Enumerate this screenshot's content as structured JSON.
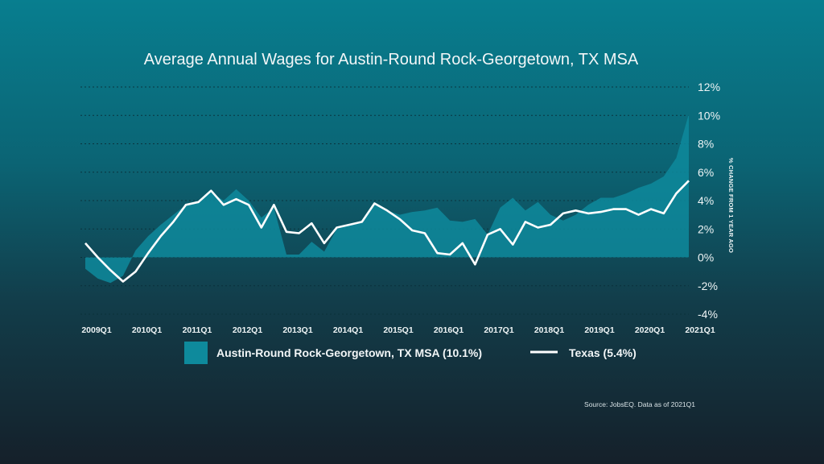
{
  "chart_data": {
    "type": "line",
    "title": "Average Annual Wages for Austin-Round Rock-Georgetown, TX MSA",
    "ylabel": "% CHANGE FROM 1 YEAR AGO",
    "xlabel": "",
    "ylim": [
      -4,
      12
    ],
    "yticks": [
      "12%",
      "10%",
      "8%",
      "6%",
      "4%",
      "2%",
      "0%",
      "-2%",
      "-4%"
    ],
    "ytick_values": [
      12,
      10,
      8,
      6,
      4,
      2,
      0,
      -2,
      -4
    ],
    "xticks": [
      "2009Q1",
      "2010Q1",
      "2011Q1",
      "2012Q1",
      "2013Q1",
      "2014Q1",
      "2015Q1",
      "2016Q1",
      "2017Q1",
      "2018Q1",
      "2019Q1",
      "2020Q1",
      "2021Q1"
    ],
    "grid": true,
    "legend_position": "bottom",
    "x": [
      "2009Q1",
      "2009Q2",
      "2009Q3",
      "2009Q4",
      "2010Q1",
      "2010Q2",
      "2010Q3",
      "2010Q4",
      "2011Q1",
      "2011Q2",
      "2011Q3",
      "2011Q4",
      "2012Q1",
      "2012Q2",
      "2012Q3",
      "2012Q4",
      "2013Q1",
      "2013Q2",
      "2013Q3",
      "2013Q4",
      "2014Q1",
      "2014Q2",
      "2014Q3",
      "2014Q4",
      "2015Q1",
      "2015Q2",
      "2015Q3",
      "2015Q4",
      "2016Q1",
      "2016Q2",
      "2016Q3",
      "2016Q4",
      "2017Q1",
      "2017Q2",
      "2017Q3",
      "2017Q4",
      "2018Q1",
      "2018Q2",
      "2018Q3",
      "2018Q4",
      "2019Q1",
      "2019Q2",
      "2019Q3",
      "2019Q4",
      "2020Q1",
      "2020Q2",
      "2020Q3",
      "2020Q4",
      "2021Q1"
    ],
    "series": [
      {
        "name": "Austin-Round Rock-Georgetown, TX MSA (10.1%)",
        "style": "area",
        "color": "#0e8a9c",
        "values": [
          -0.8,
          -1.5,
          -1.8,
          -1.3,
          0.5,
          1.5,
          2.3,
          3.0,
          3.7,
          4.0,
          4.6,
          4.0,
          4.8,
          4.0,
          2.8,
          3.5,
          0.2,
          0.2,
          1.1,
          0.4,
          2.0,
          2.3,
          2.6,
          3.7,
          3.3,
          3.0,
          3.2,
          3.3,
          3.5,
          2.6,
          2.5,
          2.7,
          1.6,
          3.5,
          4.2,
          3.3,
          3.9,
          3.0,
          2.6,
          3.0,
          3.7,
          4.2,
          4.2,
          4.5,
          4.9,
          5.2,
          5.7,
          7.0,
          10.1
        ]
      },
      {
        "name": "Texas (5.4%)",
        "style": "line",
        "color": "#ffffff",
        "values": [
          1.0,
          0.0,
          -0.9,
          -1.7,
          -1.0,
          0.3,
          1.5,
          2.5,
          3.7,
          3.9,
          4.7,
          3.7,
          4.1,
          3.7,
          2.1,
          3.7,
          1.8,
          1.7,
          2.4,
          1.0,
          2.1,
          2.3,
          2.5,
          3.8,
          3.3,
          2.7,
          1.9,
          1.7,
          0.3,
          0.2,
          1.0,
          -0.5,
          1.6,
          2.0,
          0.9,
          2.5,
          2.1,
          2.3,
          3.1,
          3.3,
          3.1,
          3.2,
          3.4,
          3.4,
          3.0,
          3.4,
          3.1,
          4.5,
          5.4
        ]
      }
    ]
  },
  "source_note": "Source: JobsEQ. Data as of 2021Q1"
}
